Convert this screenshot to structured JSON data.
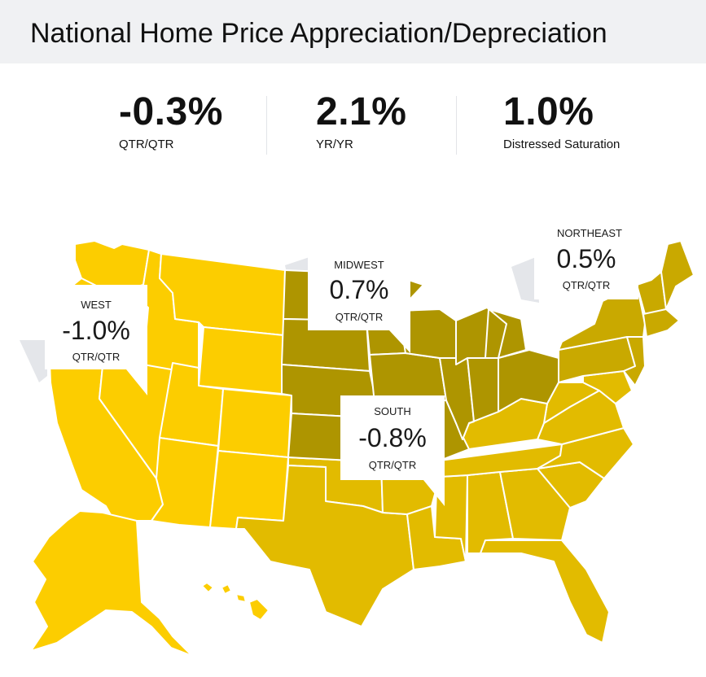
{
  "title": "National Home Price Appreciation/Depreciation",
  "stats": [
    {
      "value": "-0.3%",
      "label": "QTR/QTR"
    },
    {
      "value": "2.1%",
      "label": "YR/YR"
    },
    {
      "value": "1.0%",
      "label": "Distressed Saturation"
    }
  ],
  "colors": {
    "west": "#fccd00",
    "south": "#e2bb00",
    "midwest": "#ae9500",
    "northeast": "#c9a900",
    "border": "#ffffff",
    "callout_shadow": "#e4e6ea"
  },
  "regions": {
    "west": {
      "name": "WEST",
      "value": "-1.0%",
      "period": "QTR/QTR"
    },
    "midwest": {
      "name": "MIDWEST",
      "value": "0.7%",
      "period": "QTR/QTR"
    },
    "northeast": {
      "name": "NORTHEAST",
      "value": "0.5%",
      "period": "QTR/QTR"
    },
    "south": {
      "name": "SOUTH",
      "value": "-0.8%",
      "period": "QTR/QTR"
    }
  }
}
